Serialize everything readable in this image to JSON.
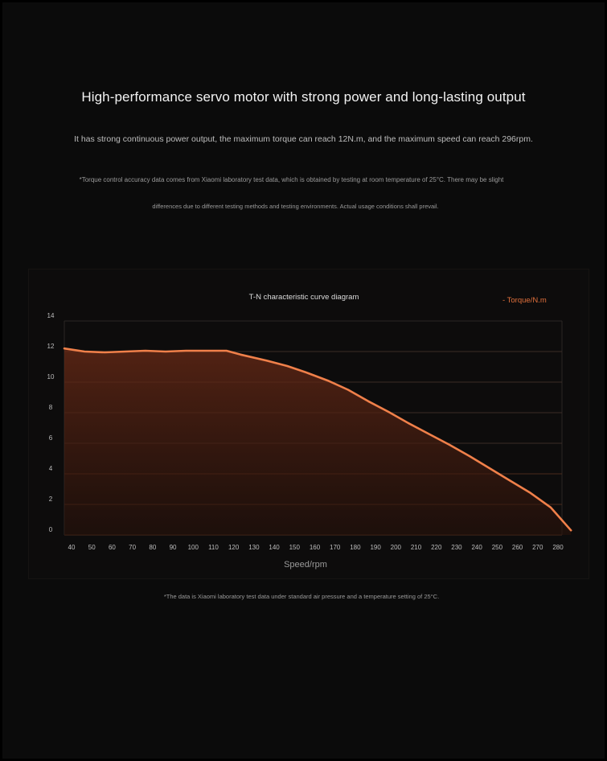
{
  "header": {
    "headline": "High-performance servo motor with strong power and long-lasting output",
    "subline": "It has strong continuous power output, the maximum torque can reach 12N.m, and the maximum speed can reach 296rpm.",
    "note_line1": "*Torque control accuracy data comes from Xiaomi laboratory test data, which is obtained by testing at room temperature of 25°C. There may be slight",
    "note_line2": "differences due to different testing methods and testing environments. Actual usage conditions shall prevail."
  },
  "footer": {
    "footnote": "*The data is Xiaomi laboratory test data under standard air pressure and a temperature setting of 25°C."
  },
  "colors": {
    "curve": "#f0804a",
    "legend": "#e0703c",
    "grid": "#3a2620"
  },
  "chart_data": {
    "type": "area",
    "title": "T-N characteristic curve diagram",
    "xlabel": "Speed/rpm",
    "ylabel": "",
    "legend": {
      "label": "- Torque/N.m",
      "placement": "top-right"
    },
    "grid": true,
    "ylim": [
      0,
      14
    ],
    "yticks": [
      0,
      2,
      4,
      6,
      8,
      10,
      12,
      14
    ],
    "xticks": [
      "40",
      "50",
      "60",
      "70",
      "80",
      "90",
      "100",
      "110",
      "120",
      "130",
      "140",
      "150",
      "160",
      "170",
      "180",
      "190",
      "200",
      "210",
      "220",
      "230",
      "240",
      "250",
      "260",
      "270",
      "280"
    ],
    "series": [
      {
        "name": "Torque/N.m",
        "points": [
          [
            0,
            12.2
          ],
          [
            1,
            12.0
          ],
          [
            2,
            11.95
          ],
          [
            3,
            12.0
          ],
          [
            4,
            12.05
          ],
          [
            5,
            12.0
          ],
          [
            6,
            12.05
          ],
          [
            7,
            12.05
          ],
          [
            8,
            12.05
          ],
          [
            8.7,
            11.8
          ],
          [
            10,
            11.4
          ],
          [
            11,
            11.05
          ],
          [
            12,
            10.6
          ],
          [
            13,
            10.1
          ],
          [
            14,
            9.5
          ],
          [
            15,
            8.75
          ],
          [
            16,
            8.05
          ],
          [
            17,
            7.3
          ],
          [
            18,
            6.6
          ],
          [
            19,
            5.9
          ],
          [
            20,
            5.15
          ],
          [
            21,
            4.35
          ],
          [
            22,
            3.55
          ],
          [
            23,
            2.75
          ],
          [
            24,
            1.8
          ],
          [
            25,
            0.3
          ]
        ]
      }
    ]
  }
}
